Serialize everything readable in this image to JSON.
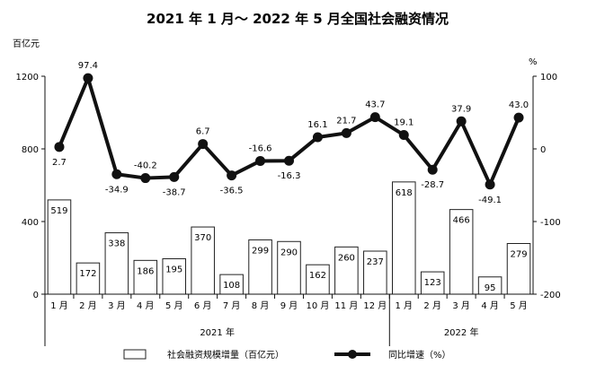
{
  "chart_data": {
    "type": "bar",
    "title": "2021 年 1 月～ 2022 年 5 月全国社会融资情况",
    "y_left_unit": "百亿元",
    "y_right_unit": "%",
    "y_left_ticks": [
      "0",
      "400",
      "800",
      "1200"
    ],
    "y_right_ticks": [
      "-200",
      "-100",
      "0",
      "100"
    ],
    "ylim_left": [
      0,
      1200
    ],
    "ylim_right": [
      -200,
      100
    ],
    "categories": [
      "1 月",
      "2 月",
      "3 月",
      "4 月",
      "5 月",
      "6 月",
      "7 月",
      "8 月",
      "9 月",
      "10 月",
      "11 月",
      "12 月",
      "1 月",
      "2 月",
      "3 月",
      "4 月",
      "5 月"
    ],
    "groups": [
      {
        "label": "2021 年",
        "count": 12
      },
      {
        "label": "2022 年",
        "count": 5
      }
    ],
    "series": [
      {
        "name": "社会融资规模增量（百亿元）",
        "type": "bar",
        "axis": "left",
        "values": [
          519,
          172,
          338,
          186,
          195,
          370,
          108,
          299,
          290,
          162,
          260,
          237,
          618,
          123,
          466,
          95,
          279
        ],
        "labels": [
          "519",
          "172",
          "338",
          "186",
          "195",
          "370",
          "108",
          "299",
          "290",
          "162",
          "260",
          "237",
          "618",
          "123",
          "466",
          "95",
          "279"
        ]
      },
      {
        "name": "同比增速（%）",
        "type": "line",
        "axis": "right",
        "values": [
          2.7,
          97.4,
          -34.9,
          -40.2,
          -38.7,
          6.7,
          -36.5,
          -16.6,
          -16.3,
          16.1,
          21.7,
          43.7,
          19.1,
          -28.7,
          37.9,
          -49.1,
          43.0
        ],
        "labels": [
          "2.7",
          "97.4",
          "-34.9",
          "-40.2",
          "-38.7",
          "6.7",
          "-36.5",
          "-16.6",
          "-16.3",
          "16.1",
          "21.7",
          "43.7",
          "19.1",
          "-28.7",
          "37.9",
          "-49.1",
          "43.0"
        ]
      }
    ],
    "legend_position": "bottom",
    "colors": {
      "bar_fill": "#ffffff",
      "bar_stroke": "#222222",
      "line": "#111111"
    }
  }
}
